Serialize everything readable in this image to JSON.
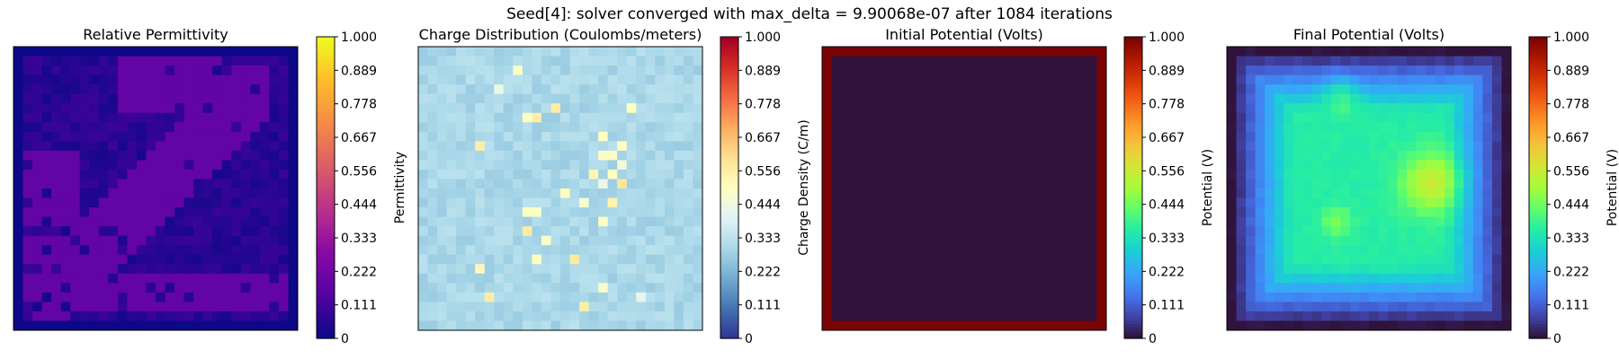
{
  "figure": {
    "suptitle": "Seed[4]: solver converged with max_delta = 9.90068e-07 after 1084 iterations"
  },
  "chart_data": [
    {
      "type": "heatmap",
      "title": "Relative Permittivity",
      "colorbar_label": "Permittivity",
      "colormap": "plasma",
      "grid": false,
      "axes_ticks": false,
      "grid_size": 30,
      "vmin": 0,
      "vmax": 1,
      "colorbar_ticks": [
        "0",
        "0.111",
        "0.222",
        "0.333",
        "0.444",
        "0.556",
        "0.667",
        "0.778",
        "0.889",
        "1.000"
      ],
      "pattern": "diagonal purple band (~0.18) over dark-blue speckled background (~0.0-0.07) with thin dark border",
      "values_approx": {
        "band": 0.18,
        "background": 0.05,
        "border": 0.0
      }
    },
    {
      "type": "heatmap",
      "title": "Charge Distribution (Coulombs/meters)",
      "colorbar_label": "Charge Density (C/m)",
      "colormap": "RdYlBu_r",
      "grid": false,
      "axes_ticks": false,
      "grid_size": 30,
      "vmin": 0,
      "vmax": 1,
      "colorbar_ticks": [
        "0",
        "0.111",
        "0.222",
        "0.333",
        "0.444",
        "0.556",
        "0.667",
        "0.778",
        "0.889",
        "1.000"
      ],
      "pattern": "mostly light blue (~0.30) with scattered white/yellow hot spots (up to ~0.58)",
      "values_approx": {
        "base": 0.3,
        "max": 0.58
      }
    },
    {
      "type": "heatmap",
      "title": "Initial Potential (Volts)",
      "colorbar_label": "Potential (V)",
      "colormap": "turbo",
      "grid": false,
      "axes_ticks": false,
      "grid_size": 30,
      "vmin": 0,
      "vmax": 1,
      "colorbar_ticks": [
        "0",
        "0.111",
        "0.222",
        "0.333",
        "0.444",
        "0.556",
        "0.667",
        "0.778",
        "0.889",
        "1.000"
      ],
      "pattern": "interior 0 V, boundary 1 V",
      "values_approx": {
        "interior": 0.0,
        "boundary": 1.0
      }
    },
    {
      "type": "heatmap",
      "title": "Final Potential (Volts)",
      "colorbar_label": "Potential (V)",
      "colormap": "turbo",
      "grid": false,
      "axes_ticks": false,
      "grid_size": 30,
      "vmin": 0,
      "vmax": 1,
      "colorbar_ticks": [
        "0",
        "0.111",
        "0.222",
        "0.333",
        "0.444",
        "0.556",
        "0.667",
        "0.778",
        "0.889",
        "1.000"
      ],
      "pattern": "dark edges rising to ~0.35 interior with hotspots near (0.75,0.48) ~0.56 and (0.4,0.15) ~0.45",
      "values_approx": {
        "edge": 0.02,
        "interior": 0.35,
        "peak": 0.56
      }
    }
  ]
}
